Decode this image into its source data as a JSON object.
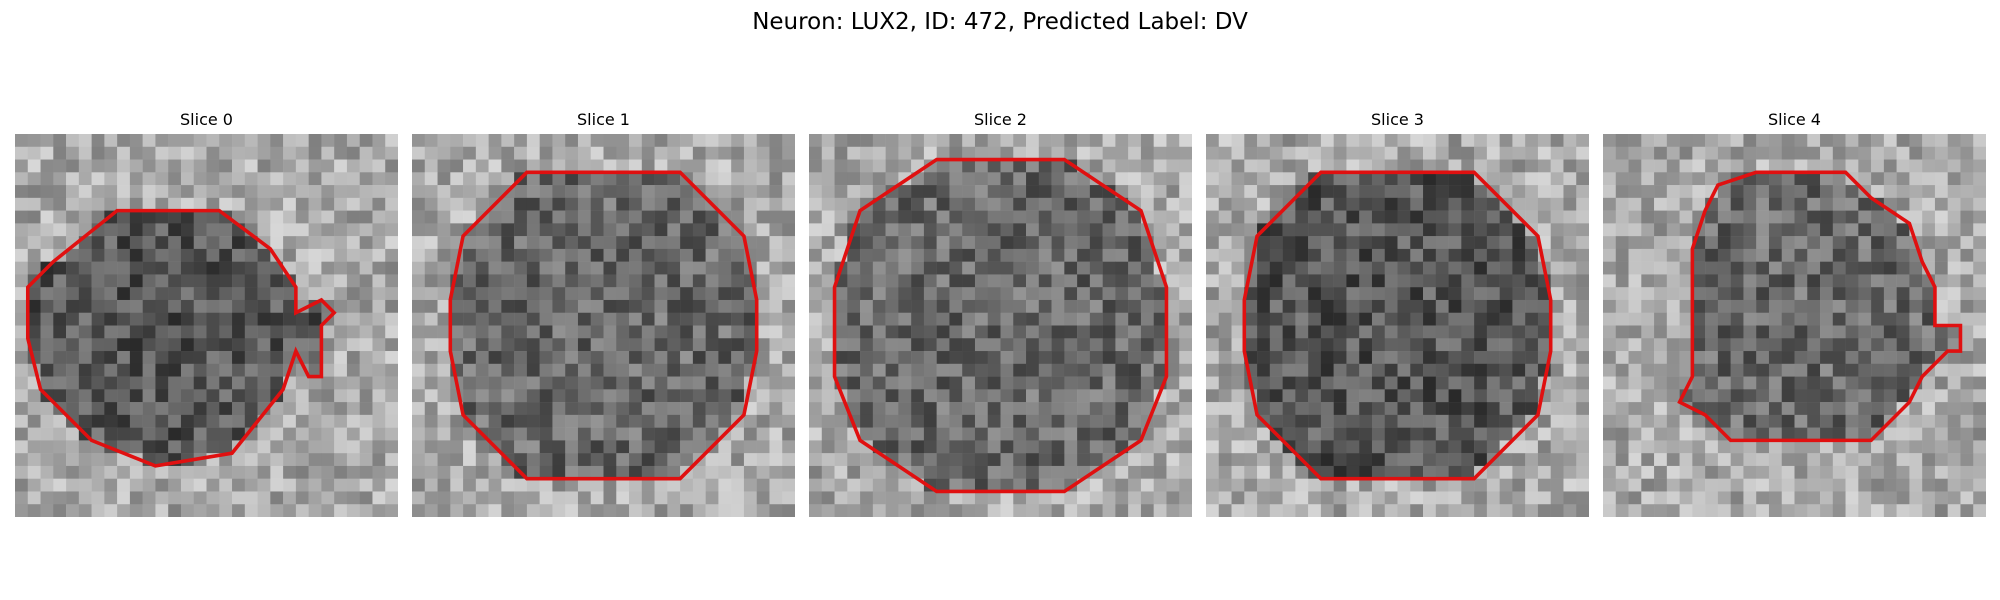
{
  "figure": {
    "title": "Neuron: LUX2, ID: 472, Predicted Label: DV"
  },
  "panels": [
    {
      "title": "Slice 0",
      "seed": 11,
      "background": "light",
      "interior": "dark",
      "outline": "irregular-left",
      "outline_color": "#e01010"
    },
    {
      "title": "Slice 1",
      "seed": 23,
      "background": "light",
      "interior": "mid",
      "outline": "octagon",
      "outline_color": "#e01010"
    },
    {
      "title": "Slice 2",
      "seed": 37,
      "background": "light",
      "interior": "mid",
      "outline": "octagon-large",
      "outline_color": "#e01010"
    },
    {
      "title": "Slice 3",
      "seed": 41,
      "background": "light",
      "interior": "dark",
      "outline": "octagon",
      "outline_color": "#e01010"
    },
    {
      "title": "Slice 4",
      "seed": 53,
      "background": "light",
      "interior": "mid",
      "outline": "irregular-right",
      "outline_color": "#e01010"
    }
  ],
  "colormap": "gray"
}
